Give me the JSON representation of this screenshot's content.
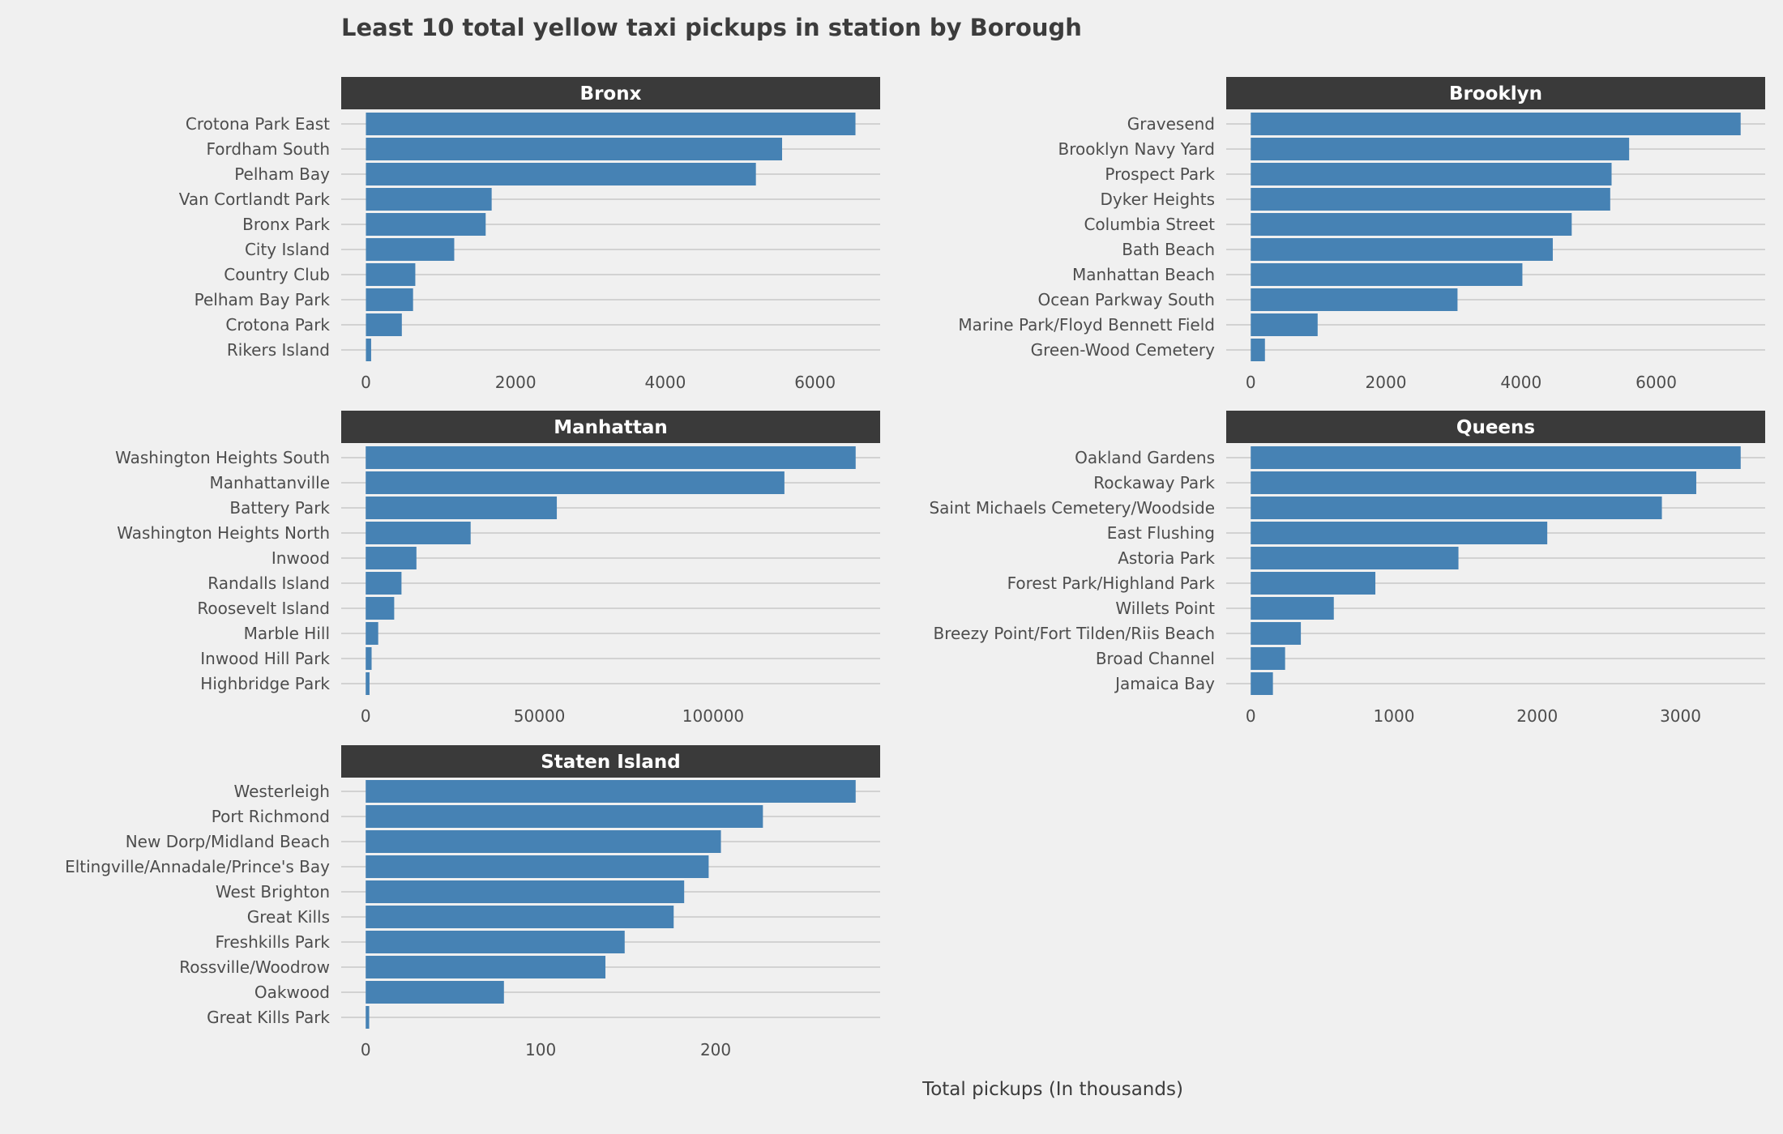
{
  "chart_data": {
    "type": "bar",
    "orientation": "horizontal",
    "title": "Least 10 total yellow taxi pickups in station by Borough",
    "xlabel": "Total pickups (In thousands)",
    "ylabel": "",
    "grid": true,
    "colors": {
      "background": "#f0f0f0",
      "bar": "#4682b4",
      "strip": "#3a3a3a",
      "strip_text": "#ffffff",
      "grid": "#d2d2d2",
      "text": "#4d4d4d"
    },
    "facets": [
      {
        "name": "Bronx",
        "categories": [
          "Crotona Park East",
          "Fordham South",
          "Pelham Bay",
          "Van Cortlandt Park",
          "Bronx Park",
          "City Island",
          "Country Club",
          "Pelham Bay Park",
          "Crotona Park",
          "Rikers Island"
        ],
        "values": [
          6540,
          5560,
          5210,
          1680,
          1600,
          1180,
          660,
          630,
          480,
          70
        ],
        "xlim": [
          -330,
          6870
        ],
        "xticks": [
          0,
          2000,
          4000,
          6000
        ],
        "xtick_labels": [
          "0",
          "2000",
          "4000",
          "6000"
        ]
      },
      {
        "name": "Brooklyn",
        "categories": [
          "Gravesend",
          "Brooklyn Navy Yard",
          "Prospect Park",
          "Dyker Heights",
          "Columbia Street",
          "Bath Beach",
          "Manhattan Beach",
          "Ocean Parkway South",
          "Marine Park/Floyd Bennett Field",
          "Green-Wood Cemetery"
        ],
        "values": [
          7250,
          5600,
          5340,
          5320,
          4750,
          4470,
          4020,
          3060,
          990,
          210
        ],
        "xlim": [
          -363,
          7613
        ],
        "xticks": [
          0,
          2000,
          4000,
          6000
        ],
        "xtick_labels": [
          "0",
          "2000",
          "4000",
          "6000"
        ]
      },
      {
        "name": "Manhattan",
        "categories": [
          "Washington Heights South",
          "Manhattanville",
          "Battery Park",
          "Washington Heights North",
          "Inwood",
          "Randalls Island",
          "Roosevelt Island",
          "Marble Hill",
          "Inwood Hill Park",
          "Highbridge Park"
        ],
        "values": [
          141000,
          120500,
          55000,
          30200,
          14600,
          10300,
          8200,
          3600,
          1700,
          1100
        ],
        "xlim": [
          -7050,
          148050
        ],
        "xticks": [
          0,
          50000,
          100000
        ],
        "xtick_labels": [
          "0",
          "50000",
          "100000"
        ]
      },
      {
        "name": "Queens",
        "categories": [
          "Oakland Gardens",
          "Rockaway Park",
          "Saint Michaels Cemetery/Woodside",
          "East Flushing",
          "Astoria Park",
          "Forest Park/Highland Park",
          "Willets Point",
          "Breezy Point/Fort Tilden/Riis Beach",
          "Broad Channel",
          "Jamaica Bay"
        ],
        "values": [
          3420,
          3110,
          2870,
          2070,
          1450,
          870,
          580,
          350,
          240,
          155
        ],
        "xlim": [
          -171,
          3591
        ],
        "xticks": [
          0,
          1000,
          2000,
          3000
        ],
        "xtick_labels": [
          "0",
          "1000",
          "2000",
          "3000"
        ]
      },
      {
        "name": "Staten Island",
        "categories": [
          "Westerleigh",
          "Port Richmond",
          "New Dorp/Midland Beach",
          "Eltingville/Annadale/Prince's Bay",
          "West Brighton",
          "Great Kills",
          "Freshkills Park",
          "Rossville/Woodrow",
          "Oakwood",
          "Great Kills Park"
        ],
        "values": [
          280,
          227,
          203,
          196,
          182,
          176,
          148,
          137,
          79,
          2
        ],
        "xlim": [
          -14,
          294
        ],
        "xticks": [
          0,
          100,
          200
        ],
        "xtick_labels": [
          "0",
          "100",
          "200"
        ]
      }
    ]
  }
}
